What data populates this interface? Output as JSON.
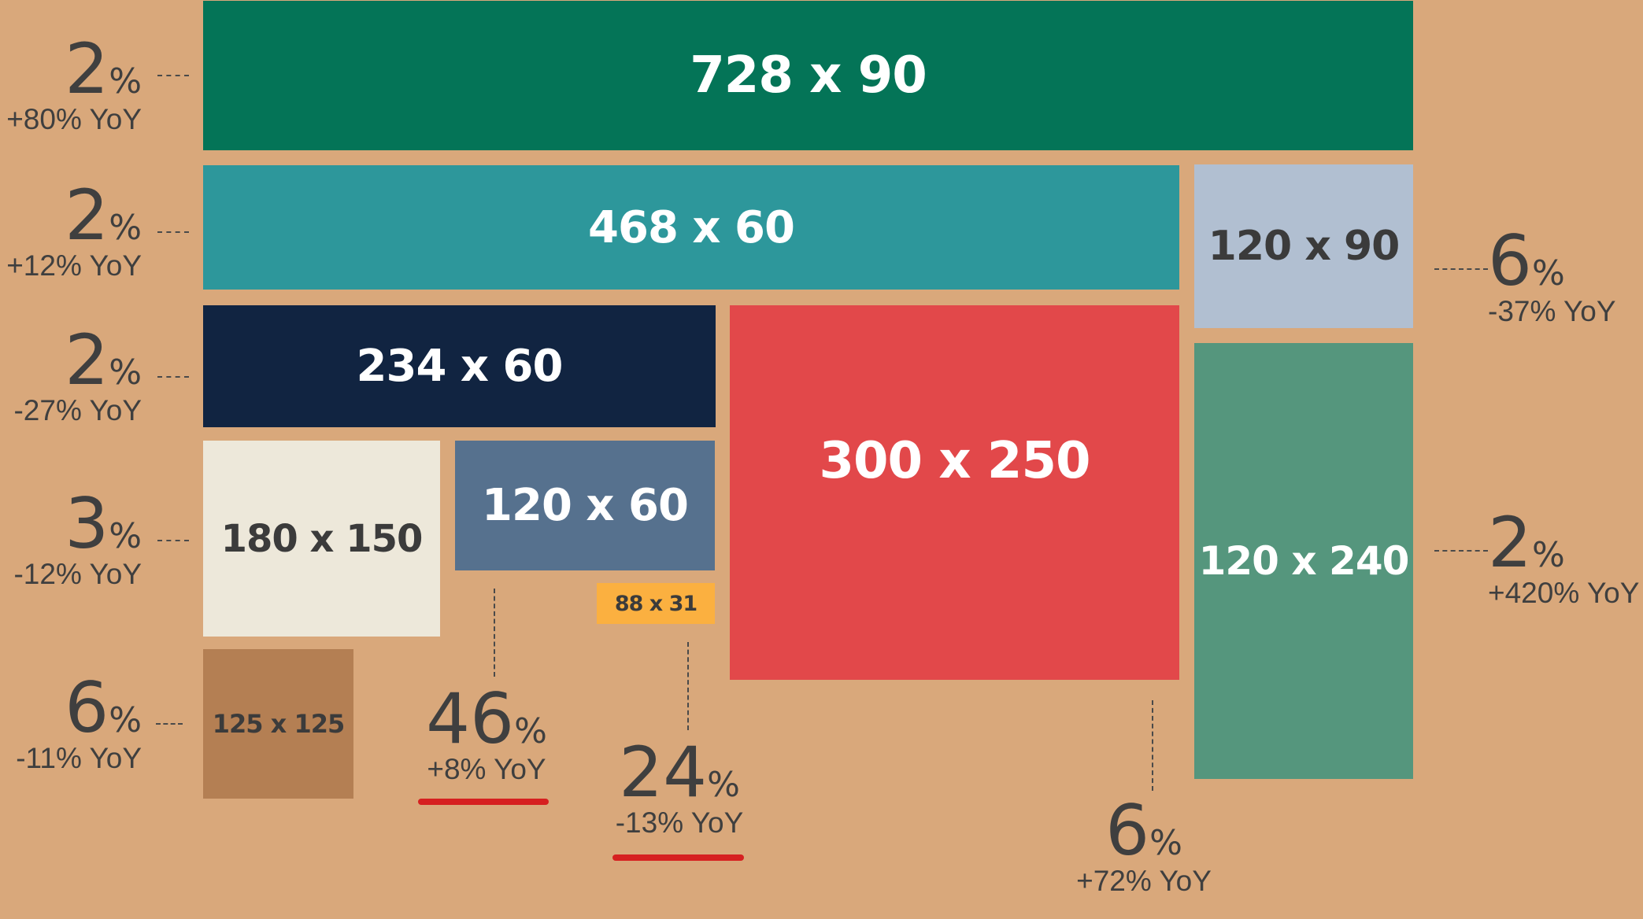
{
  "boxes": [
    {
      "id": "728x90",
      "label": "728 x 90",
      "color": "#047457",
      "text_color": "#FFFFFF"
    },
    {
      "id": "468x60",
      "label": "468 x 60",
      "color": "#2D979B",
      "text_color": "#FFFFFF"
    },
    {
      "id": "120x90",
      "label": "120 x 90",
      "color": "#B1BFD1",
      "text_color": "#3b3b3b"
    },
    {
      "id": "234x60",
      "label": "234 x 60",
      "color": "#112441",
      "text_color": "#FFFFFF"
    },
    {
      "id": "300x250",
      "label": "300 x 250",
      "color": "#E2484A",
      "text_color": "#FFFFFF"
    },
    {
      "id": "180x150",
      "label": "180 x 150",
      "color": "#EDE8DA",
      "text_color": "#3b3b3b"
    },
    {
      "id": "120x60",
      "label": "120 x 60",
      "color": "#56718E",
      "text_color": "#FFFFFF"
    },
    {
      "id": "88x31",
      "label": "88 x 31",
      "color": "#FBB040",
      "text_color": "#3b3b3b"
    },
    {
      "id": "120x240",
      "label": "120 x 240",
      "color": "#55967D",
      "text_color": "#FFFFFF"
    },
    {
      "id": "125x125",
      "label": "125 x 125",
      "color": "#B47F53",
      "text_color": "#3b3b3b"
    }
  ],
  "stats": {
    "s728x90": {
      "value": "2",
      "unit": "%",
      "yoy": "+80% YoY"
    },
    "s468x60": {
      "value": "2",
      "unit": "%",
      "yoy": "+12% YoY"
    },
    "s234x60": {
      "value": "2",
      "unit": "%",
      "yoy": "-27% YoY"
    },
    "s180x150": {
      "value": "3",
      "unit": "%",
      "yoy": "-12% YoY"
    },
    "s125x125": {
      "value": "6",
      "unit": "%",
      "yoy": "-11% YoY"
    },
    "s120x60": {
      "value": "46",
      "unit": "%",
      "yoy": "+8% YoY"
    },
    "s88x31": {
      "value": "24",
      "unit": "%",
      "yoy": "-13% YoY"
    },
    "s300x250": {
      "value": "6",
      "unit": "%",
      "yoy": "+72% YoY"
    },
    "s120x90": {
      "value": "6",
      "unit": "%",
      "yoy": "-37% YoY"
    },
    "s120x240": {
      "value": "2",
      "unit": "%",
      "yoy": "+420% YoY"
    }
  },
  "highlight_color": "#D62020"
}
